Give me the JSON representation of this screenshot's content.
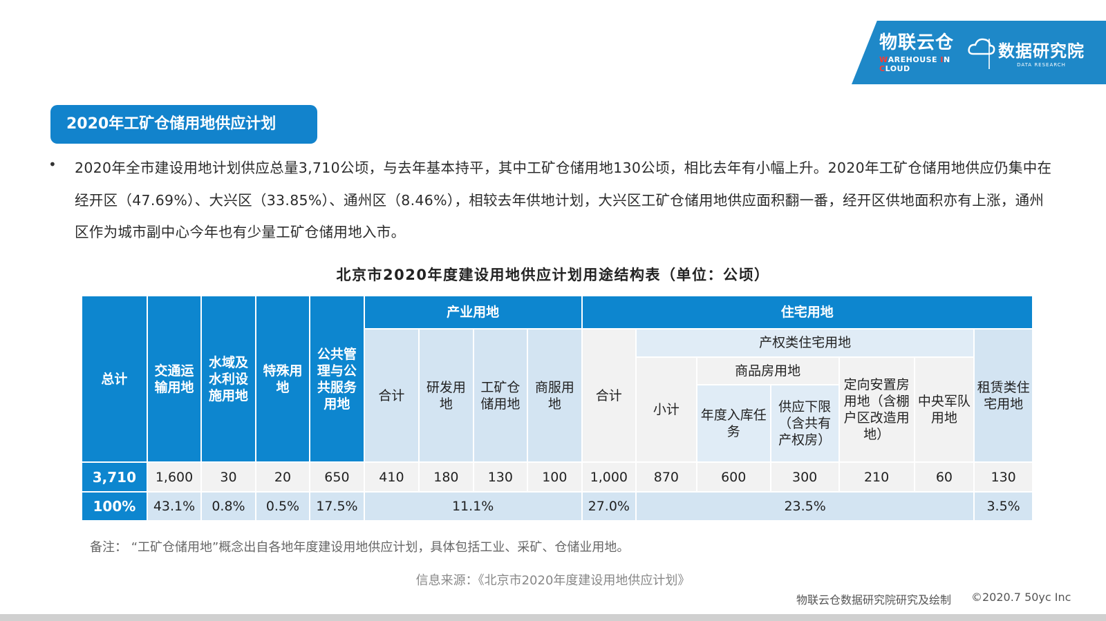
{
  "logo": {
    "brand_cn": "物联云仓",
    "brand_en_prefix": "W",
    "brand_en_1": "AREHOUSE ",
    "brand_en_i": "I",
    "brand_en_2": "N ",
    "brand_en_c": "C",
    "brand_en_3": "LOUD",
    "research_cn": "数据研究院",
    "research_en": "DATA RESEARCH"
  },
  "section": {
    "title": "2020年工矿仓储用地供应计划"
  },
  "paragraph": {
    "bullet": "•",
    "text": "2020年全市建设用地计划供应总量3,710公顷，与去年基本持平，其中工矿仓储用地130公顷，相比去年有小幅上升。2020年工矿仓储用地供应仍集中在经开区（47.69%）、大兴区（33.85%）、通州区（8.46%），相较去年供地计划，大兴区工矿仓储用地供应面积翻一番，经开区供地面积亦有上涨，通州区作为城市副中心今年也有少量工矿仓储用地入市。"
  },
  "table": {
    "title": "北京市2020年度建设用地供应计划用途结构表（单位：公顷）",
    "headers": {
      "total": "总计",
      "traffic": "交通运输用地",
      "water": "水域及水利设施用地",
      "special": "特殊用地",
      "public": "公共管理与公共服务用地",
      "industry": "产业用地",
      "residential": "住宅用地",
      "industry_sum": "合计",
      "rnd": "研发用地",
      "mining": "工矿仓储用地",
      "commercial": "商服用地",
      "res_sum": "合计",
      "property": "产权类住宅用地",
      "subtotal": "小计",
      "commodity": "商品房用地",
      "annual": "年度入库任务",
      "lower_limit": "供应下限（含共有产权房）",
      "resettlement": "定向安置房用地（含棚户区改造用地）",
      "military": "中央军队用地",
      "rental": "租赁类住宅用地"
    },
    "values": {
      "total": "3,710",
      "traffic": "1,600",
      "water": "30",
      "special": "20",
      "public": "650",
      "industry_sum": "410",
      "rnd": "180",
      "mining": "130",
      "commercial": "100",
      "res_sum": "1,000",
      "subtotal": "870",
      "annual": "600",
      "lower_limit": "300",
      "resettlement": "210",
      "military": "60",
      "rental": "130"
    },
    "percents": {
      "total": "100%",
      "traffic": "43.1%",
      "water": "0.8%",
      "special": "0.5%",
      "public": "17.5%",
      "industry": "11.1%",
      "res_sum": "27.0%",
      "property": "23.5%",
      "rental": "3.5%"
    }
  },
  "footer": {
    "note": "备注：  “工矿仓储用地”概念出自各地年度建设用地供应计划，具体包括工业、采矿、仓储业用地。",
    "source": "信息来源：《北京市2020年度建设用地供应计划》",
    "credit": "物联云仓数据研究院研究及绘制",
    "copyright": "©2020.7 50yc Inc"
  },
  "colors": {
    "accent": "#1283cc",
    "header_dark": "#0d86cf",
    "header_light": "#d3e4f2"
  }
}
